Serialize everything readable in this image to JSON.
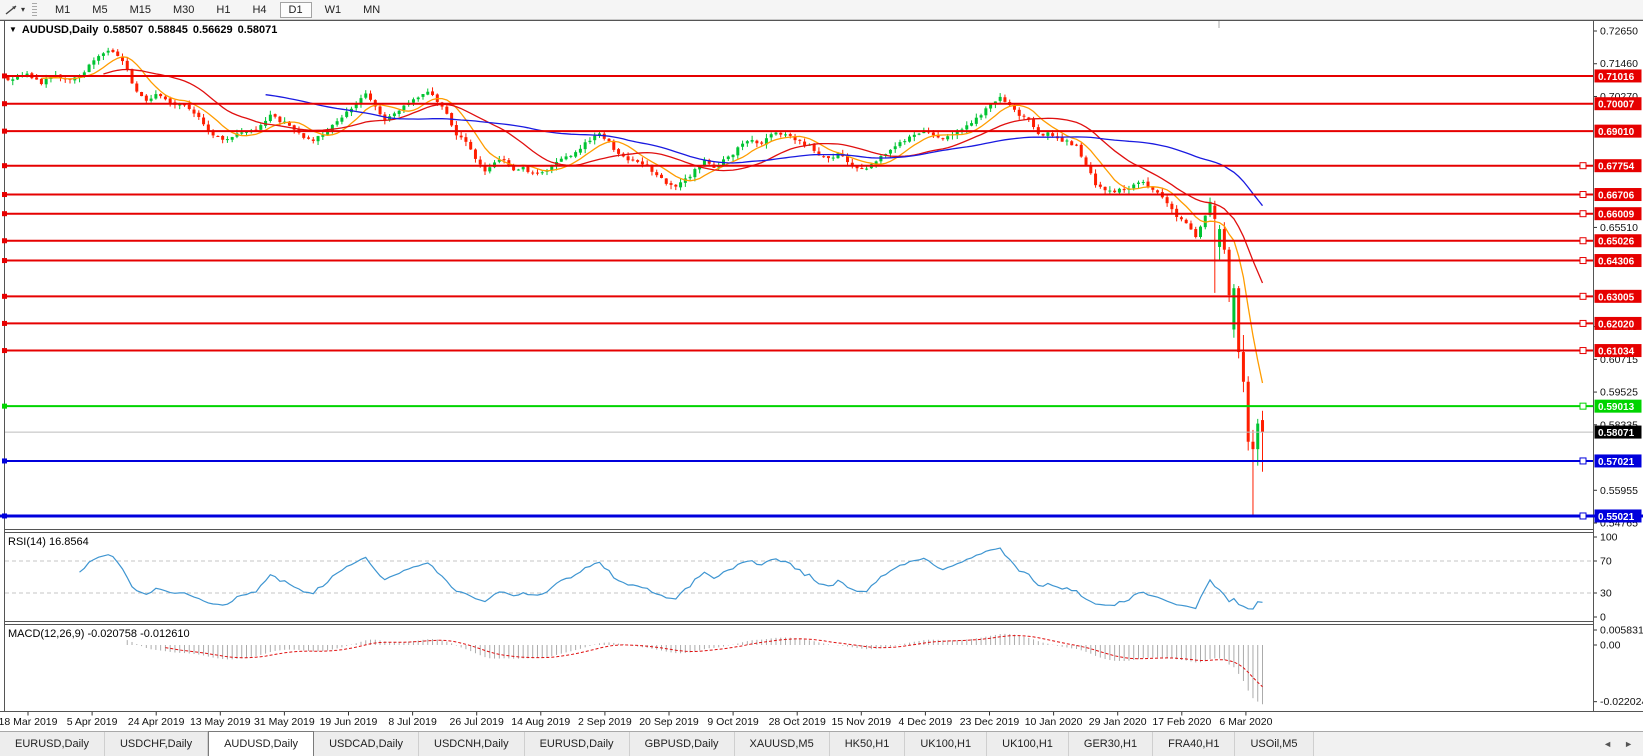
{
  "app": {
    "toolbar": {
      "tool_icon": "pointer-line-tool",
      "caret": "▾",
      "timeframes": [
        "M1",
        "M5",
        "M15",
        "M30",
        "H1",
        "H4",
        "D1",
        "W1",
        "MN"
      ],
      "selected_timeframe": "D1"
    }
  },
  "title": {
    "menu_triangle": "▼",
    "symbol": "AUDUSD,Daily",
    "open": "0.58507",
    "high": "0.58845",
    "low": "0.56629",
    "close": "0.58071"
  },
  "chart_data": {
    "type": "candlestick",
    "symbol": "AUDUSD",
    "timeframe": "Daily",
    "current_bar": {
      "open": 0.58507,
      "high": 0.58845,
      "low": 0.56629,
      "close": 0.58071
    },
    "current_price": 0.58071,
    "x_labels": [
      "18 Mar 2019",
      "5 Apr 2019",
      "24 Apr 2019",
      "13 May 2019",
      "31 May 2019",
      "19 Jun 2019",
      "8 Jul 2019",
      "26 Jul 2019",
      "14 Aug 2019",
      "2 Sep 2019",
      "20 Sep 2019",
      "9 Oct 2019",
      "28 Oct 2019",
      "15 Nov 2019",
      "4 Dec 2019",
      "23 Dec 2019",
      "10 Jan 2020",
      "29 Jan 2020",
      "17 Feb 2020",
      "6 Mar 2020"
    ],
    "y_axis_labels": [
      "0.72650",
      "0.71460",
      "0.70270",
      "0.65510",
      "0.61905",
      "0.60715",
      "0.59525",
      "0.58335",
      "0.55955",
      "0.54765"
    ],
    "price_levels": [
      {
        "price": 0.71016,
        "color": "#e60000",
        "right_handle": false,
        "width": 2
      },
      {
        "price": 0.70007,
        "color": "#e60000",
        "right_handle": false,
        "width": 2
      },
      {
        "price": 0.6901,
        "color": "#e60000",
        "right_handle": false,
        "width": 2
      },
      {
        "price": 0.67754,
        "color": "#e60000",
        "right_handle": true,
        "width": 2
      },
      {
        "price": 0.66706,
        "color": "#e60000",
        "right_handle": true,
        "width": 2
      },
      {
        "price": 0.66009,
        "color": "#e60000",
        "right_handle": true,
        "width": 2
      },
      {
        "price": 0.65026,
        "color": "#e60000",
        "right_handle": true,
        "width": 2
      },
      {
        "price": 0.64306,
        "color": "#e60000",
        "right_handle": true,
        "width": 2
      },
      {
        "price": 0.63005,
        "color": "#e60000",
        "right_handle": true,
        "width": 2
      },
      {
        "price": 0.6202,
        "color": "#e60000",
        "right_handle": true,
        "width": 2
      },
      {
        "price": 0.61034,
        "color": "#e60000",
        "right_handle": true,
        "width": 2
      },
      {
        "price": 0.59013,
        "color": "#00d400",
        "right_handle": true,
        "width": 2
      },
      {
        "price": 0.57021,
        "color": "#0000dc",
        "right_handle": true,
        "width": 2
      },
      {
        "price": 0.55021,
        "color": "#0000dc",
        "right_handle": true,
        "width": 3,
        "full_width": true
      }
    ],
    "close_anchors": [
      [
        0,
        0.709
      ],
      [
        4,
        0.7112
      ],
      [
        7,
        0.7078
      ],
      [
        10,
        0.71
      ],
      [
        13,
        0.7082
      ],
      [
        16,
        0.712
      ],
      [
        19,
        0.7168
      ],
      [
        21,
        0.7198
      ],
      [
        23,
        0.7178
      ],
      [
        25,
        0.712
      ],
      [
        27,
        0.704
      ],
      [
        29,
        0.7018
      ],
      [
        31,
        0.7035
      ],
      [
        34,
        0.7
      ],
      [
        37,
        0.6995
      ],
      [
        40,
        0.6945
      ],
      [
        43,
        0.689
      ],
      [
        46,
        0.6868
      ],
      [
        49,
        0.6898
      ],
      [
        52,
        0.6912
      ],
      [
        55,
        0.6955
      ],
      [
        58,
        0.693
      ],
      [
        61,
        0.6898
      ],
      [
        63,
        0.6866
      ],
      [
        66,
        0.6882
      ],
      [
        69,
        0.694
      ],
      [
        72,
        0.6988
      ],
      [
        75,
        0.7035
      ],
      [
        77,
        0.6995
      ],
      [
        79,
        0.6938
      ],
      [
        82,
        0.6972
      ],
      [
        85,
        0.7022
      ],
      [
        88,
        0.7042
      ],
      [
        90,
        0.7008
      ],
      [
        92,
        0.6965
      ],
      [
        94,
        0.6892
      ],
      [
        96,
        0.6855
      ],
      [
        98,
        0.6805
      ],
      [
        100,
        0.6758
      ],
      [
        102,
        0.6782
      ],
      [
        104,
        0.68
      ],
      [
        106,
        0.6758
      ],
      [
        108,
        0.6772
      ],
      [
        110,
        0.6748
      ],
      [
        112,
        0.6752
      ],
      [
        114,
        0.6772
      ],
      [
        116,
        0.68
      ],
      [
        118,
        0.6815
      ],
      [
        120,
        0.6838
      ],
      [
        122,
        0.687
      ],
      [
        124,
        0.6886
      ],
      [
        126,
        0.6858
      ],
      [
        128,
        0.6822
      ],
      [
        130,
        0.6795
      ],
      [
        132,
        0.6782
      ],
      [
        134,
        0.6772
      ],
      [
        136,
        0.674
      ],
      [
        138,
        0.6716
      ],
      [
        140,
        0.67
      ],
      [
        142,
        0.6722
      ],
      [
        144,
        0.6762
      ],
      [
        146,
        0.6792
      ],
      [
        148,
        0.6768
      ],
      [
        150,
        0.6795
      ],
      [
        152,
        0.6822
      ],
      [
        154,
        0.6852
      ],
      [
        156,
        0.6865
      ],
      [
        158,
        0.6848
      ],
      [
        160,
        0.6888
      ],
      [
        162,
        0.6895
      ],
      [
        164,
        0.6882
      ],
      [
        166,
        0.6862
      ],
      [
        168,
        0.6845
      ],
      [
        170,
        0.6815
      ],
      [
        172,
        0.6802
      ],
      [
        174,
        0.6822
      ],
      [
        176,
        0.6795
      ],
      [
        178,
        0.6772
      ],
      [
        180,
        0.6768
      ],
      [
        182,
        0.6792
      ],
      [
        184,
        0.6815
      ],
      [
        186,
        0.6848
      ],
      [
        188,
        0.6868
      ],
      [
        190,
        0.6882
      ],
      [
        192,
        0.69
      ],
      [
        194,
        0.6885
      ],
      [
        196,
        0.6878
      ],
      [
        198,
        0.6895
      ],
      [
        200,
        0.6908
      ],
      [
        202,
        0.6928
      ],
      [
        204,
        0.6962
      ],
      [
        206,
        0.7
      ],
      [
        208,
        0.7022
      ],
      [
        210,
        0.6992
      ],
      [
        212,
        0.696
      ],
      [
        214,
        0.6938
      ],
      [
        216,
        0.6885
      ],
      [
        218,
        0.6895
      ],
      [
        220,
        0.6872
      ],
      [
        222,
        0.6868
      ],
      [
        224,
        0.6845
      ],
      [
        226,
        0.678
      ],
      [
        228,
        0.6702
      ],
      [
        230,
        0.6692
      ],
      [
        232,
        0.6678
      ],
      [
        234,
        0.6692
      ],
      [
        236,
        0.6702
      ],
      [
        238,
        0.6712
      ],
      [
        240,
        0.6692
      ],
      [
        242,
        0.6655
      ],
      [
        244,
        0.6612
      ],
      [
        246,
        0.6578
      ],
      [
        248,
        0.6542
      ],
      [
        249,
        0.6515
      ],
      [
        250,
        0.6548
      ],
      [
        251,
        0.659
      ],
      [
        252,
        0.664
      ]
    ],
    "recent_candles": [
      {
        "i": 253,
        "o": 0.663,
        "h": 0.6648,
        "l": 0.6313,
        "c": 0.6582
      },
      {
        "i": 254,
        "o": 0.648,
        "h": 0.656,
        "l": 0.643,
        "c": 0.6545
      },
      {
        "i": 255,
        "o": 0.6545,
        "h": 0.657,
        "l": 0.6455,
        "c": 0.647
      },
      {
        "i": 256,
        "o": 0.647,
        "h": 0.648,
        "l": 0.628,
        "c": 0.6305
      },
      {
        "i": 257,
        "o": 0.618,
        "h": 0.6345,
        "l": 0.615,
        "c": 0.633
      },
      {
        "i": 258,
        "o": 0.633,
        "h": 0.6338,
        "l": 0.6075,
        "c": 0.6098
      },
      {
        "i": 259,
        "o": 0.6098,
        "h": 0.616,
        "l": 0.5952,
        "c": 0.599
      },
      {
        "i": 260,
        "o": 0.599,
        "h": 0.601,
        "l": 0.574,
        "c": 0.5772
      },
      {
        "i": 261,
        "o": 0.5772,
        "h": 0.5815,
        "l": 0.5506,
        "c": 0.5745
      },
      {
        "i": 262,
        "o": 0.5745,
        "h": 0.5855,
        "l": 0.5685,
        "c": 0.5838
      },
      {
        "i": 263,
        "o": 0.58507,
        "h": 0.58845,
        "l": 0.56629,
        "c": 0.58071
      }
    ],
    "moving_averages": [
      {
        "period": 8,
        "color": "#ff9c00"
      },
      {
        "period": 21,
        "color": "#e01010"
      },
      {
        "period": 55,
        "color": "#1a1ae0"
      }
    ],
    "indicators": {
      "rsi": {
        "label": "RSI(14) 16.8564",
        "period": 14,
        "value": 16.8564,
        "levels": [
          70,
          30
        ],
        "scale": [
          "100",
          "70",
          "30",
          "0"
        ],
        "color": "#3e95d1"
      },
      "macd": {
        "label": "MACD(12,26,9) -0.020758 -0.012610",
        "fast": 12,
        "slow": 26,
        "signal": 9,
        "main_value": -0.020758,
        "signal_value": -0.01261,
        "scale": [
          "0.005831",
          "0.00",
          "-0.022024"
        ],
        "histogram_color": "#ababab",
        "signal_color": "#e01010"
      }
    },
    "colors": {
      "up": "#00c432",
      "down": "#ff1e00",
      "current_price_line": "#bcbcbc"
    }
  },
  "tabs": {
    "items": [
      "EURUSD,Daily",
      "USDCHF,Daily",
      "AUDUSD,Daily",
      "USDCAD,Daily",
      "USDCNH,Daily",
      "EURUSD,Daily",
      "GBPUSD,Daily",
      "XAUUSD,M5",
      "HK50,H1",
      "UK100,H1",
      "UK100,H1",
      "GER30,H1",
      "FRA40,H1",
      "USOil,M5"
    ],
    "active_index": 2,
    "scroll_left_icon": "◄",
    "scroll_right_icon": "►"
  }
}
